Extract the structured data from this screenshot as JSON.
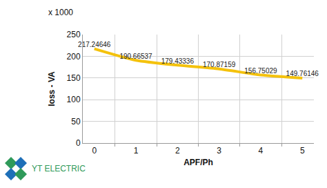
{
  "chart_data": {
    "type": "line",
    "x_label": "APF/Ph",
    "y_label": "loss - VA",
    "annotations": [
      "x 1000",
      "YT ELECTRIC"
    ],
    "categories": [
      "0",
      "1",
      "2",
      "3",
      "4",
      "5"
    ],
    "values": [
      217.24646,
      190.66537,
      179.43336,
      170.87159,
      156.75029,
      149.76146
    ],
    "color": "#f4c20d",
    "ylim": [
      0,
      250
    ],
    "yticks": [
      0,
      50,
      100,
      150,
      200,
      250
    ],
    "grid": true,
    "data_labels": true
  }
}
